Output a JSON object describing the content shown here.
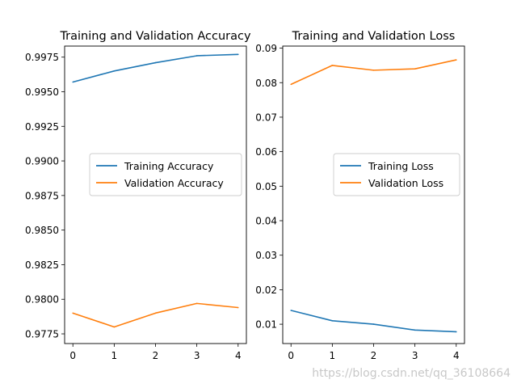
{
  "colors": {
    "training": "#1f77b4",
    "validation": "#ff7f0e"
  },
  "chart_data": [
    {
      "type": "line",
      "title": "Training and Validation Accuracy",
      "xlabel": "",
      "ylabel": "",
      "x": [
        0,
        1,
        2,
        3,
        4
      ],
      "xticks": [
        "0",
        "1",
        "2",
        "3",
        "4"
      ],
      "ylim": [
        0.9768,
        0.9983
      ],
      "yticks": [
        "0.9775",
        "0.9800",
        "0.9825",
        "0.9850",
        "0.9875",
        "0.9900",
        "0.9925",
        "0.9950",
        "0.9975"
      ],
      "legend_position": "center-right",
      "series": [
        {
          "name": "Training Accuracy",
          "color": "#1f77b4",
          "values": [
            0.9957,
            0.9965,
            0.9971,
            0.9976,
            0.9977
          ]
        },
        {
          "name": "Validation Accuracy",
          "color": "#ff7f0e",
          "values": [
            0.979,
            0.978,
            0.979,
            0.9797,
            0.9794
          ]
        }
      ]
    },
    {
      "type": "line",
      "title": "Training and Validation Loss",
      "xlabel": "",
      "ylabel": "",
      "x": [
        0,
        1,
        2,
        3,
        4
      ],
      "xticks": [
        "0",
        "1",
        "2",
        "3",
        "4"
      ],
      "ylim": [
        0.0044,
        0.0906
      ],
      "yticks": [
        "0.01",
        "0.02",
        "0.03",
        "0.04",
        "0.05",
        "0.06",
        "0.07",
        "0.08",
        "0.09"
      ],
      "legend_position": "center-right",
      "series": [
        {
          "name": "Training Loss",
          "color": "#1f77b4",
          "values": [
            0.014,
            0.011,
            0.01,
            0.0083,
            0.0078
          ]
        },
        {
          "name": "Validation Loss",
          "color": "#ff7f0e",
          "values": [
            0.0795,
            0.085,
            0.0836,
            0.084,
            0.0866
          ]
        }
      ]
    }
  ],
  "watermark": "https://blog.csdn.net/qq_36108664"
}
